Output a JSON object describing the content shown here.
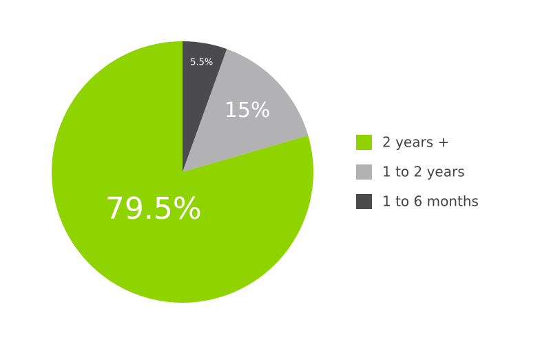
{
  "chart_data": {
    "type": "pie",
    "categories": [
      "2 years +",
      "1 to 2 years",
      "1 to 6 months"
    ],
    "values": [
      79.5,
      15,
      5.5
    ],
    "value_labels": [
      "79.5%",
      "15%",
      "5.5%"
    ],
    "colors": [
      "#8fd400",
      "#b2b2b4",
      "#4b4b4d"
    ],
    "legend": "right"
  }
}
